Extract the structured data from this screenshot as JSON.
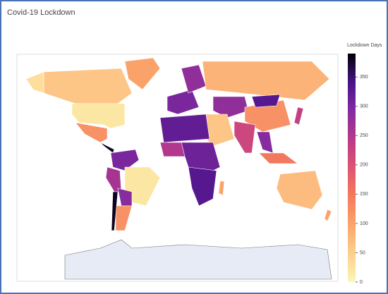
{
  "chart_data": {
    "type": "choropleth",
    "title": "Covid-19 Lockdown",
    "colorbar_title": "Lockdown Days",
    "colorscale": [
      "#fcf6b4",
      "#fdcf8e",
      "#fba46c",
      "#f47b5c",
      "#de5471",
      "#b83a8a",
      "#832ba0",
      "#48128a",
      "#000004"
    ],
    "zlim": [
      0,
      390
    ],
    "zticks": [
      0,
      50,
      100,
      150,
      200,
      250,
      300,
      350
    ],
    "values": [
      100,
      60,
      30,
      20,
      120,
      380,
      300,
      260,
      20,
      290,
      120,
      380,
      300,
      280,
      80,
      280,
      120,
      330,
      60,
      220,
      290,
      320,
      250,
      310,
      330,
      100,
      150,
      70,
      230,
      100
    ]
  }
}
